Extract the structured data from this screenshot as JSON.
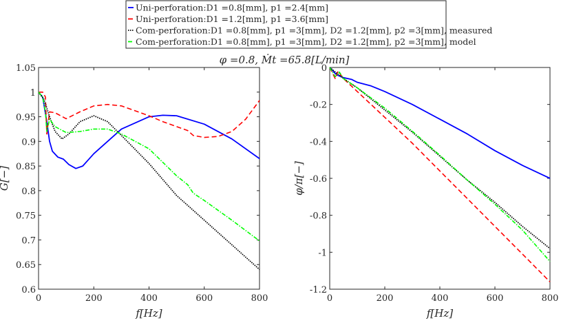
{
  "title": "φ =0.8, Ṁt =65.8[L/min]",
  "legend": [
    {
      "label": "Uni-perforation:D1 =0.8[mm], p1 =2.4[mm]",
      "color": "#0000ff",
      "dash": "solid"
    },
    {
      "label": "Uni-perforation:D1 =1.2[mm], p1 =3.6[mm]",
      "color": "#ff0000",
      "dash": "dashed"
    },
    {
      "label": "Com-perforation:D1 =0.8[mm], p1 =3[mm], D2 =1.2[mm], p2 =3[mm], measured",
      "color": "#000000",
      "dash": "dotted"
    },
    {
      "label": "Com-perforation:D1 =0.8[mm], p1 =3[mm], D2 =1.2[mm], p2 =3[mm], model",
      "color": "#00ff00",
      "dash": "dashdot"
    }
  ],
  "chart_data": [
    {
      "type": "line",
      "xlabel": "f[Hz]",
      "ylabel": "G[−]",
      "xlim": [
        0,
        800
      ],
      "ylim": [
        0.6,
        1.05
      ],
      "xticks": [
        "0",
        "200",
        "400",
        "600",
        "800"
      ],
      "yticks": [
        "0.6",
        "0.65",
        "0.7",
        "0.75",
        "0.8",
        "0.85",
        "0.9",
        "0.95",
        "1",
        "1.05"
      ],
      "grid": false,
      "series": [
        {
          "x": [
            0,
            15,
            30,
            40,
            50,
            70,
            90,
            110,
            135,
            160,
            200,
            300,
            400,
            450,
            500,
            600,
            700,
            800
          ],
          "y": [
            1,
            0.99,
            0.94,
            0.9,
            0.88,
            0.868,
            0.864,
            0.853,
            0.845,
            0.85,
            0.875,
            0.925,
            0.95,
            0.953,
            0.952,
            0.935,
            0.905,
            0.865
          ]
        },
        {
          "x": [
            0,
            15,
            25,
            30,
            40,
            60,
            100,
            150,
            200,
            250,
            300,
            400,
            450,
            500,
            540,
            560,
            600,
            650,
            700,
            750,
            800
          ],
          "y": [
            1,
            1,
            0.99,
            0.915,
            0.96,
            0.958,
            0.946,
            0.96,
            0.972,
            0.975,
            0.972,
            0.952,
            0.94,
            0.93,
            0.922,
            0.912,
            0.908,
            0.91,
            0.92,
            0.945,
            0.983
          ]
        },
        {
          "x": [
            0,
            20,
            40,
            60,
            85,
            110,
            150,
            200,
            250,
            300,
            400,
            500,
            600,
            700,
            800
          ],
          "y": [
            1,
            0.985,
            0.95,
            0.92,
            0.905,
            0.915,
            0.94,
            0.952,
            0.94,
            0.912,
            0.855,
            0.79,
            0.74,
            0.69,
            0.64
          ]
        },
        {
          "x": [
            0,
            15,
            25,
            30,
            40,
            60,
            100,
            150,
            200,
            250,
            300,
            400,
            500,
            540,
            560,
            600,
            700,
            800
          ],
          "y": [
            1,
            0.99,
            0.96,
            0.92,
            0.945,
            0.93,
            0.918,
            0.92,
            0.925,
            0.925,
            0.915,
            0.885,
            0.83,
            0.812,
            0.795,
            0.78,
            0.74,
            0.698
          ]
        }
      ]
    },
    {
      "type": "line",
      "xlabel": "f[Hz]",
      "ylabel": "φ/π[−]",
      "xlim": [
        0,
        800
      ],
      "ylim": [
        -1.2,
        0
      ],
      "xticks": [
        "0",
        "200",
        "400",
        "600",
        "800"
      ],
      "yticks": [
        "-1.2",
        "-1",
        "-0.8",
        "-0.6",
        "-0.4",
        "-0.2",
        "0"
      ],
      "grid": false,
      "series": [
        {
          "x": [
            0,
            25,
            50,
            80,
            100,
            150,
            200,
            300,
            400,
            500,
            600,
            700,
            800
          ],
          "y": [
            0,
            -0.04,
            -0.055,
            -0.065,
            -0.08,
            -0.1,
            -0.13,
            -0.2,
            -0.28,
            -0.36,
            -0.45,
            -0.53,
            -0.6
          ]
        },
        {
          "x": [
            0,
            20,
            30,
            50,
            100,
            200,
            300,
            400,
            500,
            600,
            700,
            800
          ],
          "y": [
            0,
            -0.06,
            -0.02,
            -0.06,
            -0.13,
            -0.27,
            -0.41,
            -0.56,
            -0.71,
            -0.86,
            -1.01,
            -1.16
          ]
        },
        {
          "x": [
            0,
            50,
            100,
            200,
            300,
            400,
            500,
            600,
            700,
            800
          ],
          "y": [
            0,
            -0.06,
            -0.11,
            -0.23,
            -0.35,
            -0.48,
            -0.61,
            -0.73,
            -0.86,
            -0.98
          ]
        },
        {
          "x": [
            0,
            20,
            35,
            50,
            100,
            200,
            300,
            400,
            500,
            600,
            700,
            800
          ],
          "y": [
            0,
            -0.05,
            -0.025,
            -0.06,
            -0.11,
            -0.22,
            -0.345,
            -0.475,
            -0.61,
            -0.74,
            -0.88,
            -1.05
          ]
        }
      ]
    }
  ]
}
